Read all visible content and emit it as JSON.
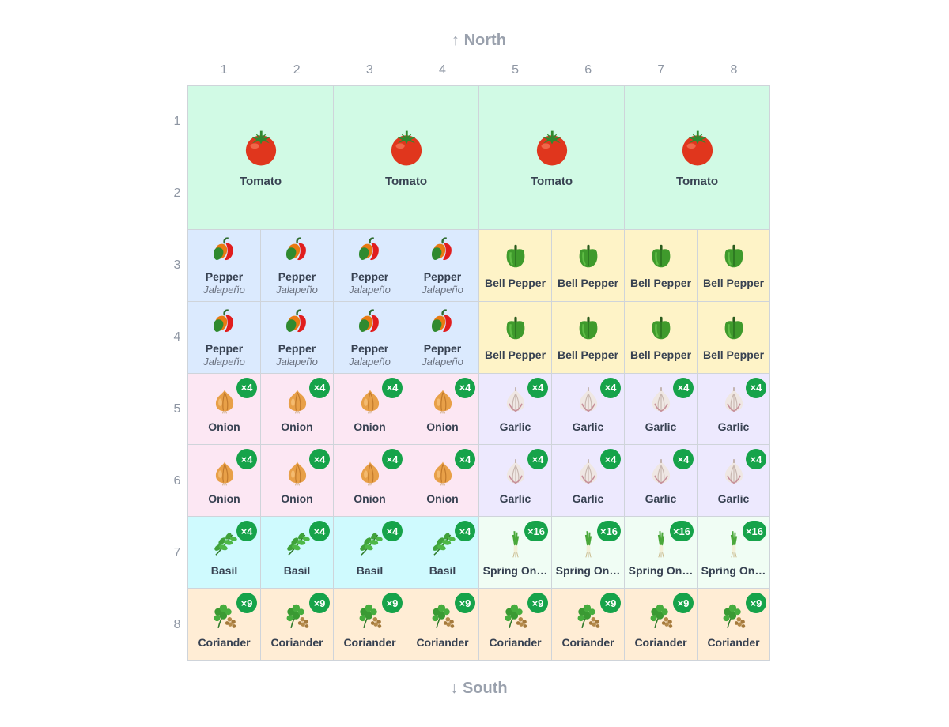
{
  "labels": {
    "north": "↑ North",
    "south": "↓ South",
    "columns": [
      "1",
      "2",
      "3",
      "4",
      "5",
      "6",
      "7",
      "8"
    ],
    "rows": [
      "1",
      "2",
      "3",
      "4",
      "5",
      "6",
      "7",
      "8"
    ]
  },
  "plants": {
    "tomato": {
      "name": "Tomato",
      "icon": "tomato-icon",
      "bg": "#d1fae5"
    },
    "pepper": {
      "name": "Pepper",
      "variety": "Jalapeño",
      "icon": "pepper-icon",
      "bg": "#dbeafe"
    },
    "bell": {
      "name": "Bell Pepper",
      "icon": "bell-pepper-icon",
      "bg": "#fef3c7"
    },
    "onion": {
      "name": "Onion",
      "icon": "onion-icon",
      "bg": "#fce7f3",
      "badge": "×4"
    },
    "garlic": {
      "name": "Garlic",
      "icon": "garlic-icon",
      "bg": "#ede9fe",
      "badge": "×4"
    },
    "basil": {
      "name": "Basil",
      "icon": "basil-icon",
      "bg": "#cffafe",
      "badge": "×4"
    },
    "spring": {
      "name": "Spring On…",
      "icon": "spring-onion-icon",
      "bg": "#f0fdf4",
      "badge": "×16"
    },
    "coriander": {
      "name": "Coriander",
      "icon": "coriander-icon",
      "bg": "#ffedd5",
      "badge": "×9"
    }
  },
  "layout": [
    {
      "plant": "tomato",
      "col": 1,
      "row": 1,
      "span": 2
    },
    {
      "plant": "tomato",
      "col": 3,
      "row": 1,
      "span": 2
    },
    {
      "plant": "tomato",
      "col": 5,
      "row": 1,
      "span": 2
    },
    {
      "plant": "tomato",
      "col": 7,
      "row": 1,
      "span": 2
    },
    {
      "plant": "pepper",
      "col": 1,
      "row": 3
    },
    {
      "plant": "pepper",
      "col": 2,
      "row": 3
    },
    {
      "plant": "pepper",
      "col": 3,
      "row": 3
    },
    {
      "plant": "pepper",
      "col": 4,
      "row": 3
    },
    {
      "plant": "bell",
      "col": 5,
      "row": 3
    },
    {
      "plant": "bell",
      "col": 6,
      "row": 3
    },
    {
      "plant": "bell",
      "col": 7,
      "row": 3
    },
    {
      "plant": "bell",
      "col": 8,
      "row": 3
    },
    {
      "plant": "pepper",
      "col": 1,
      "row": 4
    },
    {
      "plant": "pepper",
      "col": 2,
      "row": 4
    },
    {
      "plant": "pepper",
      "col": 3,
      "row": 4
    },
    {
      "plant": "pepper",
      "col": 4,
      "row": 4
    },
    {
      "plant": "bell",
      "col": 5,
      "row": 4
    },
    {
      "plant": "bell",
      "col": 6,
      "row": 4
    },
    {
      "plant": "bell",
      "col": 7,
      "row": 4
    },
    {
      "plant": "bell",
      "col": 8,
      "row": 4
    },
    {
      "plant": "onion",
      "col": 1,
      "row": 5
    },
    {
      "plant": "onion",
      "col": 2,
      "row": 5
    },
    {
      "plant": "onion",
      "col": 3,
      "row": 5
    },
    {
      "plant": "onion",
      "col": 4,
      "row": 5
    },
    {
      "plant": "garlic",
      "col": 5,
      "row": 5
    },
    {
      "plant": "garlic",
      "col": 6,
      "row": 5
    },
    {
      "plant": "garlic",
      "col": 7,
      "row": 5
    },
    {
      "plant": "garlic",
      "col": 8,
      "row": 5
    },
    {
      "plant": "onion",
      "col": 1,
      "row": 6
    },
    {
      "plant": "onion",
      "col": 2,
      "row": 6
    },
    {
      "plant": "onion",
      "col": 3,
      "row": 6
    },
    {
      "plant": "onion",
      "col": 4,
      "row": 6
    },
    {
      "plant": "garlic",
      "col": 5,
      "row": 6
    },
    {
      "plant": "garlic",
      "col": 6,
      "row": 6
    },
    {
      "plant": "garlic",
      "col": 7,
      "row": 6
    },
    {
      "plant": "garlic",
      "col": 8,
      "row": 6
    },
    {
      "plant": "basil",
      "col": 1,
      "row": 7
    },
    {
      "plant": "basil",
      "col": 2,
      "row": 7
    },
    {
      "plant": "basil",
      "col": 3,
      "row": 7
    },
    {
      "plant": "basil",
      "col": 4,
      "row": 7
    },
    {
      "plant": "spring",
      "col": 5,
      "row": 7
    },
    {
      "plant": "spring",
      "col": 6,
      "row": 7
    },
    {
      "plant": "spring",
      "col": 7,
      "row": 7
    },
    {
      "plant": "spring",
      "col": 8,
      "row": 7
    },
    {
      "plant": "coriander",
      "col": 1,
      "row": 8
    },
    {
      "plant": "coriander",
      "col": 2,
      "row": 8
    },
    {
      "plant": "coriander",
      "col": 3,
      "row": 8
    },
    {
      "plant": "coriander",
      "col": 4,
      "row": 8
    },
    {
      "plant": "coriander",
      "col": 5,
      "row": 8
    },
    {
      "plant": "coriander",
      "col": 6,
      "row": 8
    },
    {
      "plant": "coriander",
      "col": 7,
      "row": 8
    },
    {
      "plant": "coriander",
      "col": 8,
      "row": 8
    }
  ]
}
